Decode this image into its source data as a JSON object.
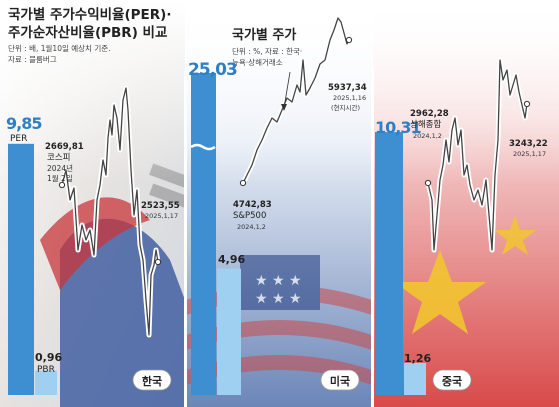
{
  "header": {
    "title_line1": "국가별 주가수익비율(PER)·",
    "title_line2": "주가순자산비율(PBR) 비교",
    "note_line1": "단위 : 배, 1월10일 예상치 기준.",
    "note_line2": "자료 : 블룸버그"
  },
  "us_header": {
    "title": "국가별 주가",
    "note_line1": "단위 : %, 자료 : 한국·",
    "note_line2": "뉴욕·상해거래소"
  },
  "legend_labels": {
    "per": "PER",
    "pbr": "PBR"
  },
  "chart_data": [
    {
      "type": "bar",
      "country": "한국",
      "categories": [
        "PER",
        "PBR"
      ],
      "values": [
        9.85,
        0.96
      ],
      "value_labels": [
        "9,85",
        "0,96"
      ],
      "colors": {
        "per": "#3d8fd1",
        "pbr": "#9fd0f2"
      }
    },
    {
      "type": "bar",
      "country": "미국",
      "categories": [
        "PER",
        "PBR"
      ],
      "values": [
        25.03,
        4.96
      ],
      "value_labels": [
        "25,03",
        "4,96"
      ],
      "colors": {
        "per": "#3d8fd1",
        "pbr": "#9fd0f2"
      }
    },
    {
      "type": "bar",
      "country": "중국",
      "categories": [
        "PER",
        "PBR"
      ],
      "values": [
        10.31,
        1.26
      ],
      "value_labels": [
        "10,31",
        "1,26"
      ],
      "colors": {
        "per": "#3d8fd1",
        "pbr": "#9fd0f2"
      }
    },
    {
      "type": "line",
      "index": "코스피",
      "x": [
        "2024-01-02",
        "2025-01-17"
      ],
      "y": [
        2669.81,
        2523.55
      ],
      "start_label": {
        "value": "2669,81",
        "name": "코스피",
        "date_line1": "2024년",
        "date_line2": "1월 2일"
      },
      "end_label": {
        "value": "2523,55",
        "date": "2025,1,17"
      }
    },
    {
      "type": "line",
      "index": "S&P500",
      "x": [
        "2024-01-02",
        "2025-01-16"
      ],
      "y": [
        4742.83,
        5937.34
      ],
      "start_label": {
        "value": "4742,83",
        "name": "S&P500",
        "date": "2024,1,2"
      },
      "end_label": {
        "value": "5937,34",
        "date": "2025,1,16",
        "note": "(현지시간)"
      }
    },
    {
      "type": "line",
      "index": "상해종합",
      "x": [
        "2024-01-02",
        "2025-01-17"
      ],
      "y": [
        2962.28,
        3243.22
      ],
      "start_label": {
        "value": "2962,28",
        "name": "상해종합",
        "date": "2024,1,2"
      },
      "end_label": {
        "value": "3243,22",
        "date": "2025,1,17"
      }
    }
  ]
}
